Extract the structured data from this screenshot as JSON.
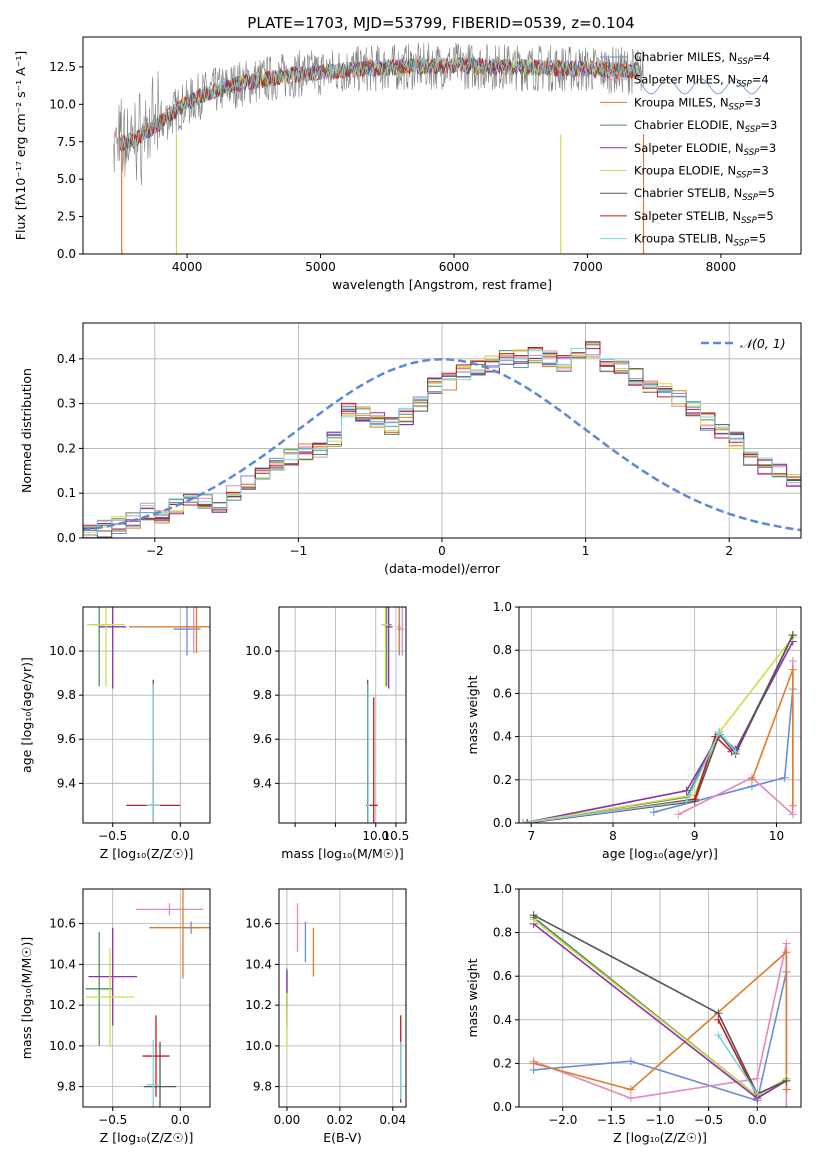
{
  "figure": {
    "title": "PLATE=1703, MJD=53799, FIBERID=0539, z=0.104"
  },
  "legend_spectrum": [
    {
      "label": "Chabrier MILES, N",
      "sub": "SSP",
      "tail": "=4",
      "color": "#6b8ed6"
    },
    {
      "label": "Salpeter MILES, N",
      "sub": "SSP",
      "tail": "=4",
      "color": "#e58ac0"
    },
    {
      "label": "Kroupa MILES, N",
      "sub": "SSP",
      "tail": "=3",
      "color": "#e07b2c"
    },
    {
      "label": "Chabrier ELODIE, N",
      "sub": "SSP",
      "tail": "=3",
      "color": "#4d8f5a"
    },
    {
      "label": "Salpeter ELODIE, N",
      "sub": "SSP",
      "tail": "=3",
      "color": "#8e2fb0"
    },
    {
      "label": "Kroupa ELODIE, N",
      "sub": "SSP",
      "tail": "=3",
      "color": "#cfdc4a"
    },
    {
      "label": "Chabrier STELIB, N",
      "sub": "SSP",
      "tail": "=5",
      "color": "#555555"
    },
    {
      "label": "Salpeter STELIB, N",
      "sub": "SSP",
      "tail": "=5",
      "color": "#c11d1d"
    },
    {
      "label": "Kroupa STELIB, N",
      "sub": "SSP",
      "tail": "=5",
      "color": "#7fd2dc"
    }
  ],
  "chart_data": [
    {
      "id": "spectrum",
      "type": "line",
      "xlabel": "wavelength [Angstrom, rest frame]",
      "ylabel": "Flux [fλ10⁻¹⁷ erg cm⁻² s⁻¹ A⁻¹]",
      "xlim": [
        3220,
        8600
      ],
      "ylim": [
        0,
        14.5
      ],
      "xticks": [
        4000,
        5000,
        6000,
        7000,
        8000
      ],
      "yticks": [
        0.0,
        2.5,
        5.0,
        7.5,
        10.0,
        12.5
      ],
      "grid": false,
      "legend": "top-right",
      "data_color": "#808080",
      "series_colors": [
        "#6b8ed6",
        "#e58ac0",
        "#e07b2c",
        "#4d8f5a",
        "#8e2fb0",
        "#cfdc4a",
        "#555555",
        "#c11d1d",
        "#7fd2dc"
      ],
      "continuum": {
        "x": [
          3450,
          3600,
          3800,
          3950,
          4100,
          4400,
          4800,
          5200,
          5600,
          6000,
          6400,
          6800,
          7200,
          7400
        ],
        "y": [
          7.3,
          7.6,
          8.8,
          9.8,
          10.6,
          11.4,
          12.0,
          12.3,
          12.5,
          12.6,
          12.5,
          12.4,
          12.3,
          12.2
        ]
      }
    },
    {
      "id": "residuals",
      "type": "histogram",
      "xlabel": "(data-model)/error",
      "ylabel": "Normed distribution",
      "xlim": [
        -2.5,
        2.5
      ],
      "ylim": [
        0,
        0.48
      ],
      "xticks": [
        -2,
        -1,
        0,
        1,
        2
      ],
      "yticks": [
        0.0,
        0.1,
        0.2,
        0.3,
        0.4
      ],
      "grid": true,
      "legend": "top-right",
      "legend_label": "𝒩(0, 1)",
      "gauss_color": "#5b8ad6",
      "bin_width": 0.1,
      "bin_start": -2.5,
      "values": [
        0.01,
        0.02,
        0.03,
        0.04,
        0.06,
        0.05,
        0.07,
        0.08,
        0.08,
        0.07,
        0.1,
        0.12,
        0.14,
        0.16,
        0.18,
        0.19,
        0.2,
        0.22,
        0.29,
        0.28,
        0.26,
        0.25,
        0.27,
        0.3,
        0.34,
        0.35,
        0.37,
        0.38,
        0.39,
        0.4,
        0.4,
        0.41,
        0.4,
        0.39,
        0.41,
        0.42,
        0.39,
        0.38,
        0.36,
        0.34,
        0.33,
        0.31,
        0.29,
        0.26,
        0.24,
        0.22,
        0.18,
        0.16,
        0.15,
        0.13
      ]
    },
    {
      "id": "age-vs-Z",
      "type": "errorbar",
      "xlabel": "Z [log₁₀(Z/Z☉)]",
      "ylabel": "age  [log₁₀(age/yr)]",
      "xlim": [
        -0.72,
        0.22
      ],
      "ylim": [
        9.22,
        10.2
      ],
      "xticks": [
        -0.5,
        0.0
      ],
      "yticks": [
        9.4,
        9.6,
        9.8,
        10.0
      ],
      "grid": true,
      "points": [
        {
          "x": 0.05,
          "y": 10.1,
          "xerr": 0.1,
          "yerr": 0.12
        },
        {
          "x": 0.1,
          "y": 10.11,
          "xerr": 0.08,
          "yerr": 0.12
        },
        {
          "x": 0.12,
          "y": 10.11,
          "xerr": 0.5,
          "yerr": 0.12
        },
        {
          "x": -0.6,
          "y": 10.12,
          "xerr": 0.05,
          "yerr": 0.28
        },
        {
          "x": -0.5,
          "y": 10.11,
          "xerr": 0.1,
          "yerr": 0.28
        },
        {
          "x": -0.55,
          "y": 10.12,
          "xerr": 0.14,
          "yerr": 0.28
        },
        {
          "x": -0.2,
          "y": 9.3,
          "xerr": 0.03,
          "yerr": 0.57
        },
        {
          "x": -0.2,
          "y": 9.3,
          "xerr": 0.2,
          "yerr": 0.2
        },
        {
          "x": -0.2,
          "y": 9.3,
          "xerr": 0.05,
          "yerr": 0.55
        }
      ]
    },
    {
      "id": "age-vs-mass",
      "type": "errorbar",
      "xlabel": "mass [log₁₀(M/M☉)]",
      "ylabel": "",
      "xlim": [
        7.6,
        10.75
      ],
      "ylim": [
        9.22,
        10.2
      ],
      "xticks": [
        8.0,
        9.0,
        10.0,
        10.5
      ],
      "xticklabels": [
        "",
        "",
        "10.0",
        "10.5"
      ],
      "yticks": [
        9.4,
        9.6,
        9.8,
        10.0
      ],
      "grid": true,
      "points": [
        {
          "x": 10.58,
          "y": 10.1,
          "xerr": 0.04,
          "yerr": 0.12
        },
        {
          "x": 10.66,
          "y": 10.1,
          "xerr": 0.04,
          "yerr": 0.12
        },
        {
          "x": 10.58,
          "y": 10.11,
          "xerr": 0.04,
          "yerr": 0.12
        },
        {
          "x": 10.27,
          "y": 10.12,
          "xerr": 0.12,
          "yerr": 0.28
        },
        {
          "x": 10.32,
          "y": 10.11,
          "xerr": 0.1,
          "yerr": 0.28
        },
        {
          "x": 10.24,
          "y": 10.12,
          "xerr": 0.08,
          "yerr": 0.28
        },
        {
          "x": 9.8,
          "y": 9.3,
          "xerr": 0.04,
          "yerr": 0.57
        },
        {
          "x": 9.95,
          "y": 9.3,
          "xerr": 0.1,
          "yerr": 0.49
        },
        {
          "x": 9.81,
          "y": 9.3,
          "xerr": 0.03,
          "yerr": 0.55
        }
      ]
    },
    {
      "id": "massweight-vs-age",
      "type": "line",
      "xlabel": "age  [log₁₀(age/yr)]",
      "ylabel": "mass weight",
      "xlim": [
        6.85,
        10.3
      ],
      "ylim": [
        0.0,
        1.0
      ],
      "xticks": [
        7,
        8,
        9,
        10
      ],
      "yticks": [
        0.0,
        0.2,
        0.4,
        0.6,
        0.8,
        1.0
      ],
      "grid": true,
      "series": [
        {
          "x": [
            8.5,
            9.7,
            10.1,
            10.2
          ],
          "y": [
            0.05,
            0.17,
            0.21,
            0.62
          ]
        },
        {
          "x": [
            8.8,
            9.7,
            10.2,
            10.2
          ],
          "y": [
            0.04,
            0.21,
            0.04,
            0.75
          ]
        },
        {
          "x": [
            9.7,
            10.2,
            10.2
          ],
          "y": [
            0.2,
            0.71,
            0.08
          ]
        },
        {
          "x": [
            6.9,
            8.9,
            9.3,
            9.5,
            10.2
          ],
          "y": [
            0.0,
            0.12,
            0.42,
            0.33,
            0.87
          ]
        },
        {
          "x": [
            6.9,
            8.9,
            9.3,
            9.5,
            10.2
          ],
          "y": [
            0.0,
            0.15,
            0.41,
            0.34,
            0.84
          ]
        },
        {
          "x": [
            6.9,
            9.0,
            9.3,
            10.2
          ],
          "y": [
            0.0,
            0.13,
            0.42,
            0.86
          ]
        },
        {
          "x": [
            6.95,
            9.0,
            9.3,
            9.5,
            10.2
          ],
          "y": [
            0.0,
            0.1,
            0.41,
            0.32,
            0.87
          ]
        },
        {
          "x": [
            6.95,
            9.0,
            9.25,
            9.45
          ],
          "y": [
            0.0,
            0.11,
            0.4,
            0.33
          ]
        },
        {
          "x": [
            6.9,
            8.9,
            9.3,
            9.5
          ],
          "y": [
            0.0,
            0.1,
            0.42,
            0.33
          ]
        }
      ]
    },
    {
      "id": "mass-vs-Z",
      "type": "errorbar",
      "xlabel": "Z [log₁₀(Z/Z☉)]",
      "ylabel": "mass [log₁₀(M/M☉)]",
      "xlim": [
        -0.72,
        0.22
      ],
      "ylim": [
        9.7,
        10.77
      ],
      "xticks": [
        -0.5,
        0.0
      ],
      "yticks": [
        9.8,
        10.0,
        10.2,
        10.4,
        10.6
      ],
      "grid": true,
      "points": [
        {
          "x": 0.08,
          "y": 10.58,
          "xerr": 0.05,
          "yerr": 0.03
        },
        {
          "x": -0.08,
          "y": 10.67,
          "xerr": 0.25,
          "yerr": 0.03
        },
        {
          "x": 0.02,
          "y": 10.58,
          "xerr": 0.25,
          "yerr": 0.25
        },
        {
          "x": -0.6,
          "y": 10.28,
          "xerr": 0.1,
          "yerr": 0.28
        },
        {
          "x": -0.5,
          "y": 10.34,
          "xerr": 0.18,
          "yerr": 0.24
        },
        {
          "x": -0.52,
          "y": 10.24,
          "xerr": 0.18,
          "yerr": 0.24
        },
        {
          "x": -0.15,
          "y": 9.8,
          "xerr": 0.12,
          "yerr": 0.22
        },
        {
          "x": -0.18,
          "y": 9.95,
          "xerr": 0.1,
          "yerr": 0.2
        },
        {
          "x": -0.2,
          "y": 9.81,
          "xerr": 0.05,
          "yerr": 0.22
        }
      ]
    },
    {
      "id": "mass-vs-EBV",
      "type": "errorbar",
      "xlabel": "E(B-V)",
      "ylabel": "",
      "xlim": [
        -0.003,
        0.045
      ],
      "ylim": [
        9.7,
        10.77
      ],
      "xticks": [
        0.0,
        0.02,
        0.04
      ],
      "yticks": [
        9.8,
        10.0,
        10.2,
        10.4,
        10.6
      ],
      "grid": true,
      "points": [
        {
          "x": 0.007,
          "y": 10.51,
          "xerr": 0.0,
          "yerr": 0.1
        },
        {
          "x": 0.004,
          "y": 10.58,
          "xerr": 0.0,
          "yerr": 0.12
        },
        {
          "x": 0.01,
          "y": 10.46,
          "xerr": 0.0,
          "yerr": 0.12
        },
        {
          "x": 0.0,
          "y": 10.28,
          "xerr": 0.0,
          "yerr": 0.1
        },
        {
          "x": 0.0,
          "y": 10.23,
          "xerr": 0.0,
          "yerr": 0.14
        },
        {
          "x": 0.0,
          "y": 10.12,
          "xerr": 0.0,
          "yerr": 0.14
        },
        {
          "x": 0.043,
          "y": 9.82,
          "xerr": 0.0,
          "yerr": 0.1
        },
        {
          "x": 0.043,
          "y": 10.03,
          "xerr": 0.0,
          "yerr": 0.12
        },
        {
          "x": 0.043,
          "y": 9.88,
          "xerr": 0.0,
          "yerr": 0.14
        }
      ]
    },
    {
      "id": "massweight-vs-Z",
      "type": "line",
      "xlabel": "Z [log₁₀(Z/Z☉)]",
      "ylabel": "mass weight",
      "xlim": [
        -2.45,
        0.45
      ],
      "ylim": [
        0.0,
        1.0
      ],
      "xticks": [
        -2.0,
        -1.5,
        -1.0,
        -0.5,
        0.0
      ],
      "yticks": [
        0.0,
        0.2,
        0.4,
        0.6,
        0.8,
        1.0
      ],
      "grid": true,
      "series": [
        {
          "x": [
            -2.3,
            -1.3,
            0.0,
            0.3
          ],
          "y": [
            0.17,
            0.21,
            0.03,
            0.62
          ]
        },
        {
          "x": [
            -2.3,
            -1.3,
            0.0,
            0.3,
            0.3
          ],
          "y": [
            0.21,
            0.04,
            0.13,
            0.75,
            0.0
          ]
        },
        {
          "x": [
            -2.3,
            -1.3,
            0.3,
            0.3
          ],
          "y": [
            0.2,
            0.08,
            0.71,
            0.08
          ]
        },
        {
          "x": [
            -2.3,
            0.0,
            0.3
          ],
          "y": [
            0.87,
            0.05,
            0.13
          ]
        },
        {
          "x": [
            -2.3,
            0.0,
            0.3
          ],
          "y": [
            0.84,
            0.04,
            0.12
          ]
        },
        {
          "x": [
            -2.3,
            0.0,
            0.3
          ],
          "y": [
            0.86,
            0.05,
            0.13
          ]
        },
        {
          "x": [
            -2.3,
            -0.4,
            0.0,
            0.3
          ],
          "y": [
            0.88,
            0.43,
            0.06,
            0.12
          ]
        },
        {
          "x": [
            -0.4,
            0.0
          ],
          "y": [
            0.4,
            0.05
          ]
        },
        {
          "x": [
            -0.4,
            0.0
          ],
          "y": [
            0.33,
            0.06
          ]
        }
      ]
    }
  ]
}
